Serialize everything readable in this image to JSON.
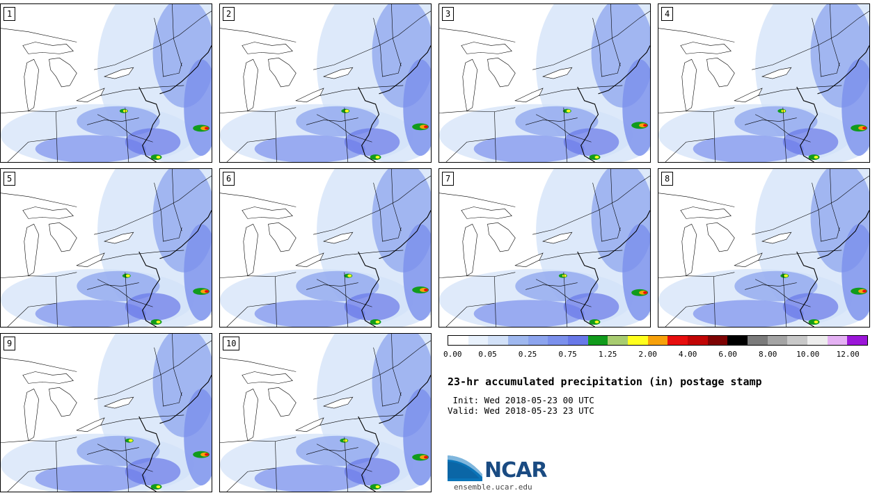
{
  "panels": [
    {
      "label": "1"
    },
    {
      "label": "2"
    },
    {
      "label": "3"
    },
    {
      "label": "4"
    },
    {
      "label": "5"
    },
    {
      "label": "6"
    },
    {
      "label": "7"
    },
    {
      "label": "8"
    },
    {
      "label": "9"
    },
    {
      "label": "10"
    }
  ],
  "colorbar": {
    "colors": [
      "#ffffff",
      "#e8f1fc",
      "#d2e1f8",
      "#9fb8ef",
      "#8ca4ee",
      "#7b90ec",
      "#6878e8",
      "#119b1c",
      "#a8cc70",
      "#ffff1e",
      "#f7a10b",
      "#e70e0e",
      "#c10505",
      "#7d0303",
      "#000000",
      "#7b7b7b",
      "#a4a4a4",
      "#c8c8c8",
      "#ededed",
      "#e4b1f3",
      "#9b16d8"
    ],
    "tick_labels": [
      "0.00",
      "0.05",
      "0.25",
      "0.75",
      "1.25",
      "2.00",
      "4.00",
      "6.00",
      "8.00",
      "10.00",
      "12.00"
    ]
  },
  "title": "23-hr accumulated precipitation (in) postage stamp",
  "init_line": " Init: Wed 2018-05-23 00 UTC",
  "valid_line": "Valid: Wed 2018-05-23 23 UTC",
  "logo": {
    "name": "NCAR",
    "url": "ensemble.ucar.edu"
  }
}
